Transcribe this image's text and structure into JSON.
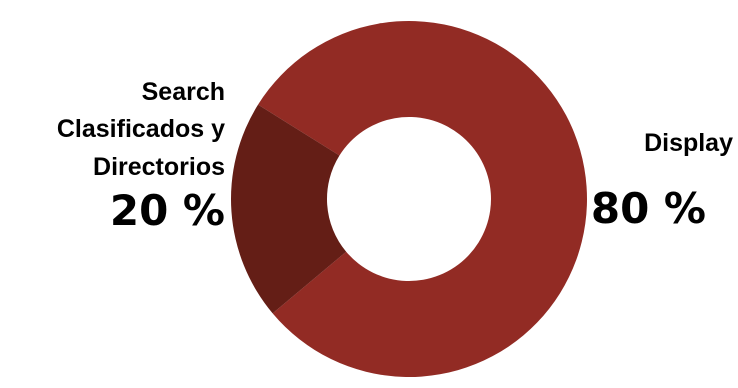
{
  "chart_data": {
    "type": "pie",
    "donut": true,
    "title": "",
    "start_angle_deg": -148,
    "slices": [
      {
        "label_lines": [
          "Display"
        ],
        "value": 80,
        "value_label": "80 %",
        "color": "#922b24"
      },
      {
        "label_lines": [
          "Search",
          "Clasificados y",
          "Directorios"
        ],
        "value": 20,
        "value_label": "20 %",
        "color": "#641e16"
      }
    ],
    "legend": "none"
  }
}
